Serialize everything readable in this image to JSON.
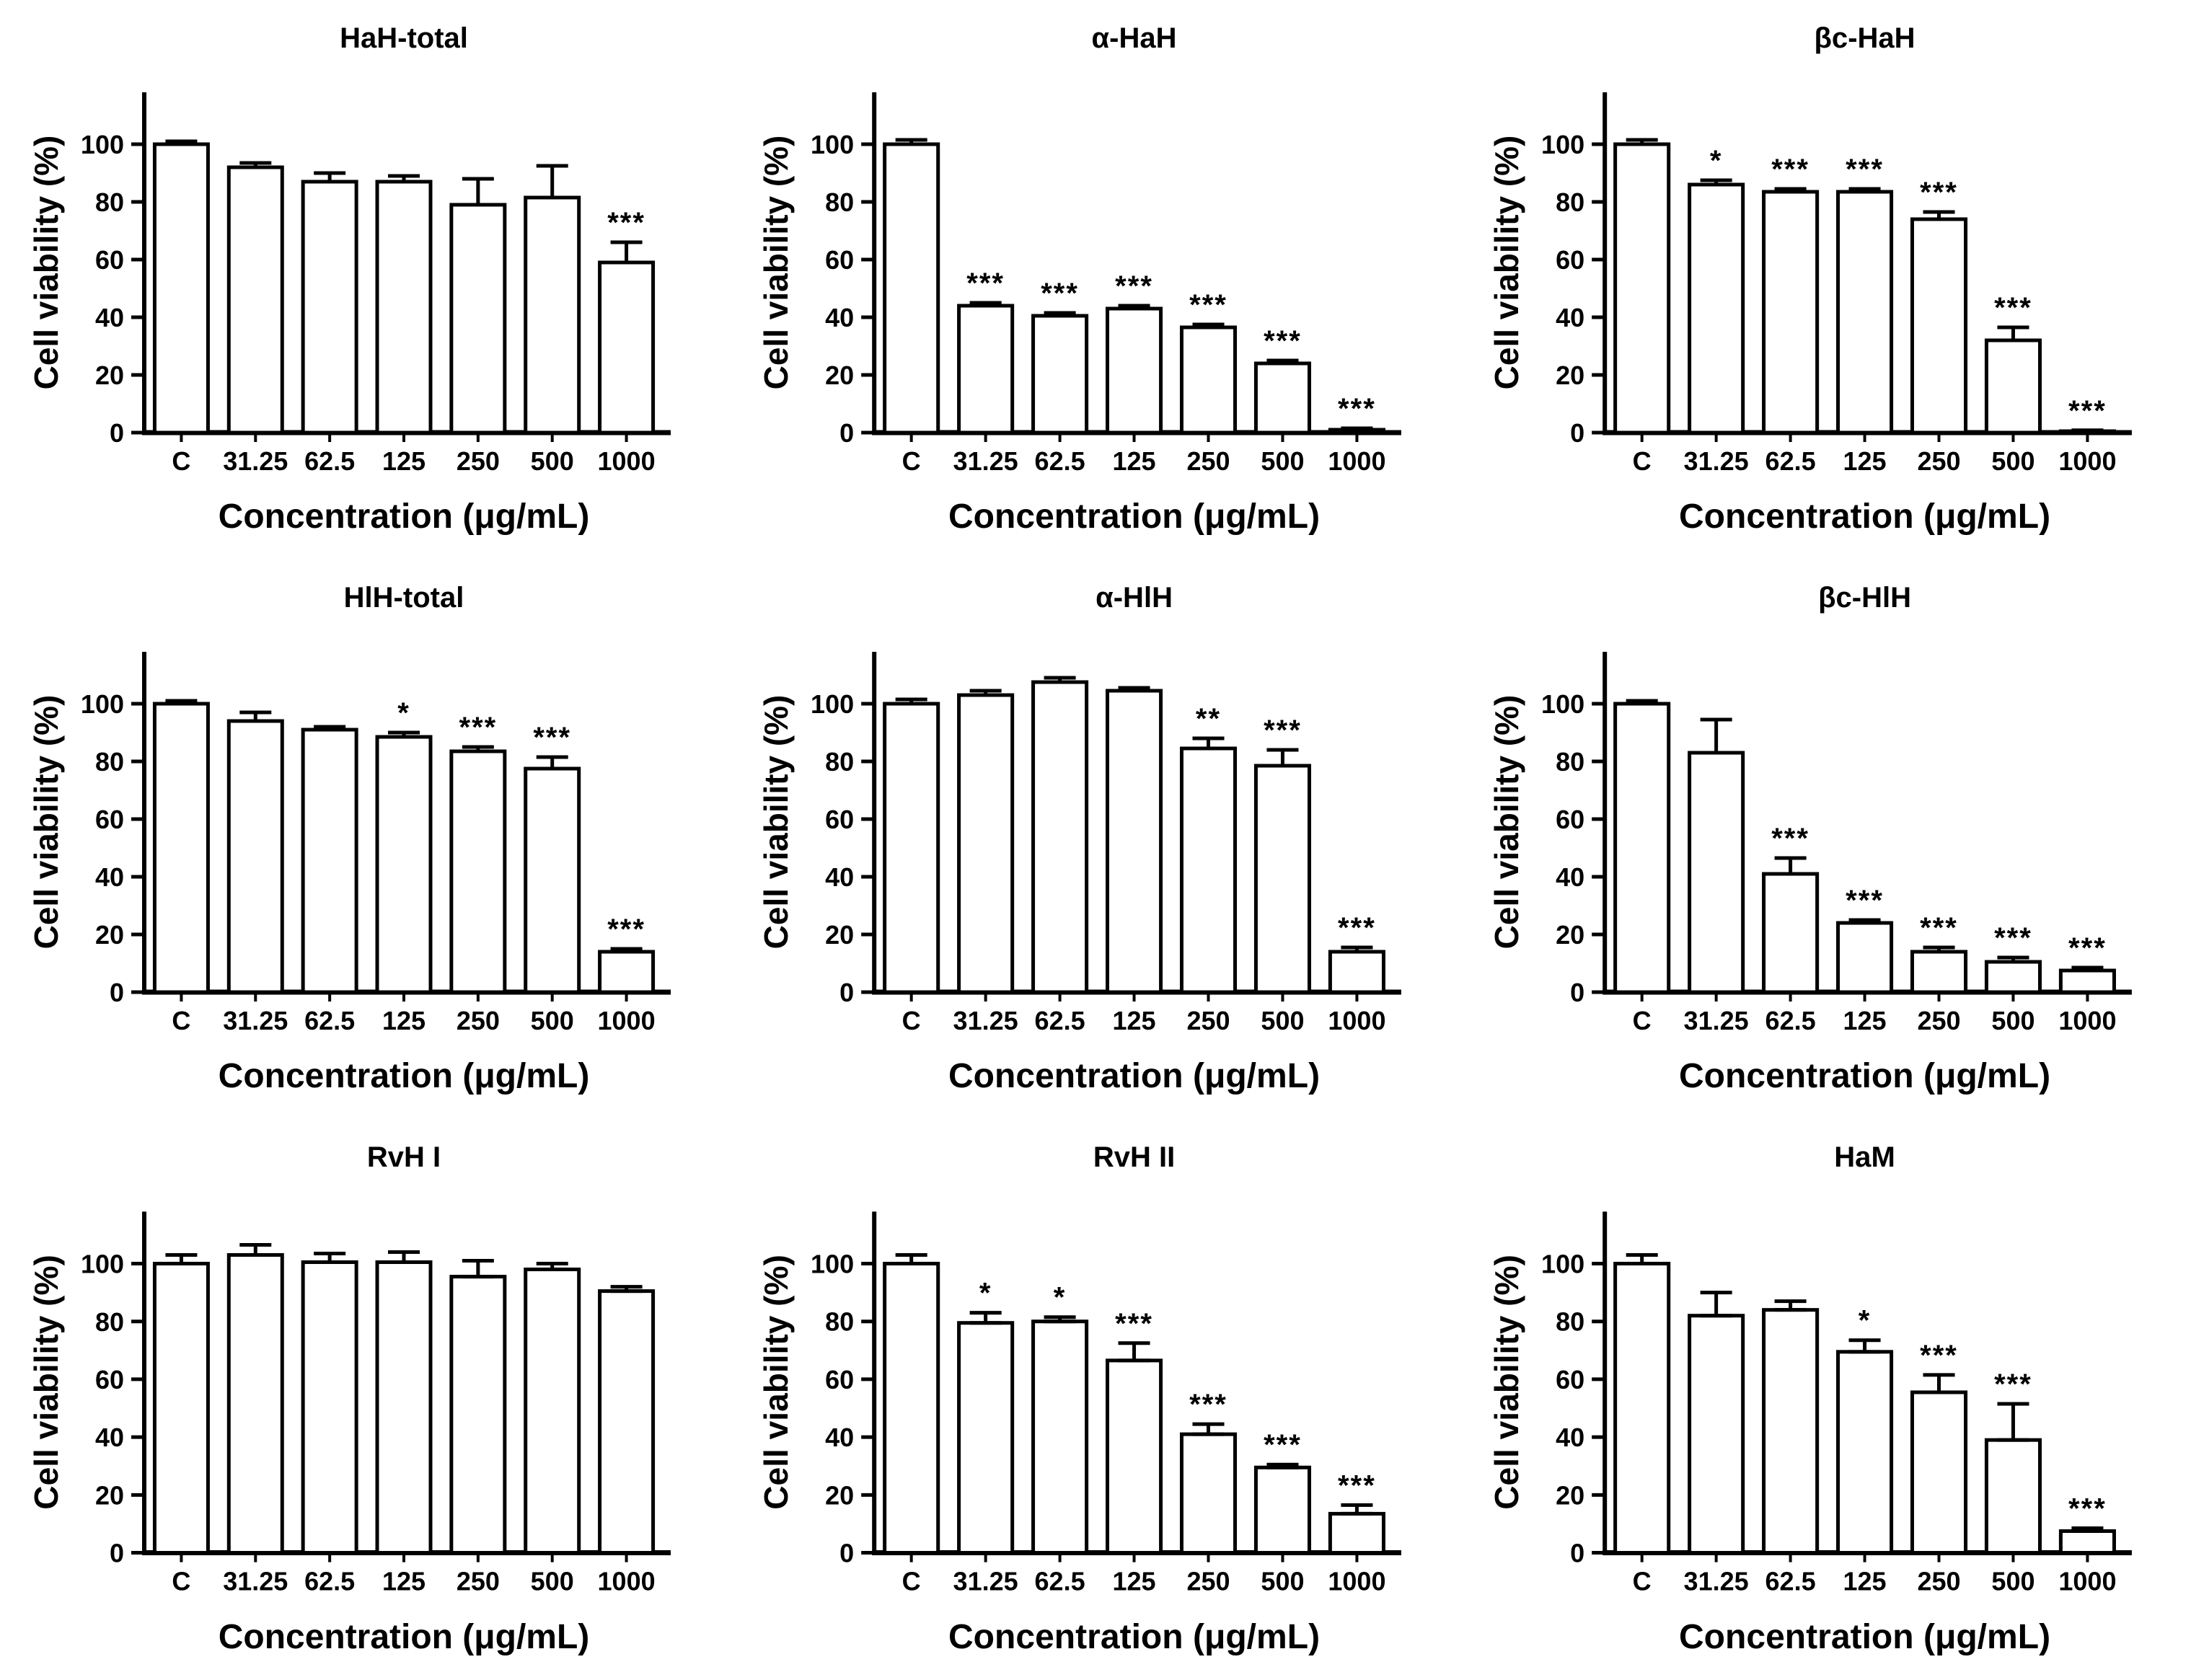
{
  "figure": {
    "background": "#ffffff",
    "ink_color": "#000000",
    "bar_fill": "#ffffff",
    "ylabel": "Cell viability (%)",
    "xlabel": "Concentration (μg/mL)",
    "categories": [
      "C",
      "31.25",
      "62.5",
      "125",
      "250",
      "500",
      "1000"
    ],
    "yticks": [
      0,
      20,
      40,
      60,
      80,
      100
    ],
    "ylim": [
      0,
      118
    ],
    "grid": "off",
    "layout": "3x3 panel grid",
    "error_bar_style": "upper SD with caps",
    "significance_legend": [
      "*",
      "**",
      "***"
    ]
  },
  "chart_data": [
    {
      "type": "bar",
      "title": "HaH-total",
      "categories": [
        "C",
        "31.25",
        "62.5",
        "125",
        "250",
        "500",
        "1000"
      ],
      "values": [
        100,
        92,
        87,
        87,
        79,
        81.5,
        59
      ],
      "errors": [
        1,
        1.5,
        3,
        2,
        9,
        11,
        7
      ],
      "significance": [
        "",
        "",
        "",
        "",
        "",
        "",
        "***"
      ],
      "xlabel": "Concentration (μg/mL)",
      "ylabel": "Cell viability (%)",
      "ylim": [
        0,
        118
      ]
    },
    {
      "type": "bar",
      "title": "α-HaH",
      "categories": [
        "C",
        "31.25",
        "62.5",
        "125",
        "250",
        "500",
        "1000"
      ],
      "values": [
        100,
        44,
        40.5,
        43,
        36.5,
        24,
        1
      ],
      "errors": [
        1.5,
        1,
        1,
        1,
        1,
        1,
        0.5
      ],
      "significance": [
        "",
        "***",
        "***",
        "***",
        "***",
        "***",
        "***"
      ],
      "xlabel": "Concentration (μg/mL)",
      "ylabel": "Cell viability (%)",
      "ylim": [
        0,
        118
      ]
    },
    {
      "type": "bar",
      "title": "βc-HaH",
      "categories": [
        "C",
        "31.25",
        "62.5",
        "125",
        "250",
        "500",
        "1000"
      ],
      "values": [
        100,
        86,
        83.5,
        83.5,
        74,
        32,
        0.5
      ],
      "errors": [
        1.5,
        1.5,
        1,
        1,
        2.5,
        4.5,
        0.3
      ],
      "significance": [
        "",
        "*",
        "***",
        "***",
        "***",
        "***",
        "***"
      ],
      "xlabel": "Concentration (μg/mL)",
      "ylabel": "Cell viability (%)",
      "ylim": [
        0,
        118
      ]
    },
    {
      "type": "bar",
      "title": "HlH-total",
      "categories": [
        "C",
        "31.25",
        "62.5",
        "125",
        "250",
        "500",
        "1000"
      ],
      "values": [
        100,
        94,
        91,
        88.5,
        83.5,
        77.5,
        14
      ],
      "errors": [
        1,
        3,
        1,
        1.5,
        1.5,
        4,
        1
      ],
      "significance": [
        "",
        "",
        "",
        "*",
        "***",
        "***",
        "***"
      ],
      "xlabel": "Concentration (μg/mL)",
      "ylabel": "Cell viability (%)",
      "ylim": [
        0,
        118
      ]
    },
    {
      "type": "bar",
      "title": "α-HlH",
      "categories": [
        "C",
        "31.25",
        "62.5",
        "125",
        "250",
        "500",
        "1000"
      ],
      "values": [
        100,
        103,
        107.5,
        104.5,
        84.5,
        78.5,
        14
      ],
      "errors": [
        1.5,
        1.5,
        1.5,
        1,
        3.5,
        5.5,
        1.5
      ],
      "significance": [
        "",
        "",
        "",
        "",
        "**",
        "***",
        "***"
      ],
      "xlabel": "Concentration (μg/mL)",
      "ylabel": "Cell viability (%)",
      "ylim": [
        0,
        118
      ]
    },
    {
      "type": "bar",
      "title": "βc-HlH",
      "categories": [
        "C",
        "31.25",
        "62.5",
        "125",
        "250",
        "500",
        "1000"
      ],
      "values": [
        100,
        83,
        41,
        24,
        14,
        10.5,
        7.5
      ],
      "errors": [
        1,
        11.5,
        5.5,
        1,
        1.5,
        1.5,
        1
      ],
      "significance": [
        "",
        "",
        "***",
        "***",
        "***",
        "***",
        "***"
      ],
      "xlabel": "Concentration (μg/mL)",
      "ylabel": "Cell viability (%)",
      "ylim": [
        0,
        118
      ]
    },
    {
      "type": "bar",
      "title": "RvH I",
      "categories": [
        "C",
        "31.25",
        "62.5",
        "125",
        "250",
        "500",
        "1000"
      ],
      "values": [
        100,
        103,
        100.5,
        100.5,
        95.5,
        98,
        90.5
      ],
      "errors": [
        3,
        3.5,
        3,
        3.5,
        5.5,
        2,
        1.5
      ],
      "significance": [
        "",
        "",
        "",
        "",
        "",
        "",
        ""
      ],
      "xlabel": "Concentration (μg/mL)",
      "ylabel": "Cell viability (%)",
      "ylim": [
        0,
        118
      ]
    },
    {
      "type": "bar",
      "title": "RvH II",
      "categories": [
        "C",
        "31.25",
        "62.5",
        "125",
        "250",
        "500",
        "1000"
      ],
      "values": [
        100,
        79.5,
        80,
        66.5,
        41,
        29.5,
        13.5
      ],
      "errors": [
        3,
        3.5,
        1.5,
        6,
        3.5,
        1,
        3
      ],
      "significance": [
        "",
        "*",
        "*",
        "***",
        "***",
        "***",
        "***"
      ],
      "xlabel": "Concentration (μg/mL)",
      "ylabel": "Cell viability (%)",
      "ylim": [
        0,
        118
      ]
    },
    {
      "type": "bar",
      "title": "HaM",
      "categories": [
        "C",
        "31.25",
        "62.5",
        "125",
        "250",
        "500",
        "1000"
      ],
      "values": [
        100,
        82,
        84,
        69.5,
        55.5,
        39,
        7.5
      ],
      "errors": [
        3,
        8,
        3,
        4,
        6,
        12.5,
        1
      ],
      "significance": [
        "",
        "",
        "",
        "*",
        "***",
        "***",
        "***"
      ],
      "xlabel": "Concentration (μg/mL)",
      "ylabel": "Cell viability (%)",
      "ylim": [
        0,
        118
      ]
    }
  ]
}
